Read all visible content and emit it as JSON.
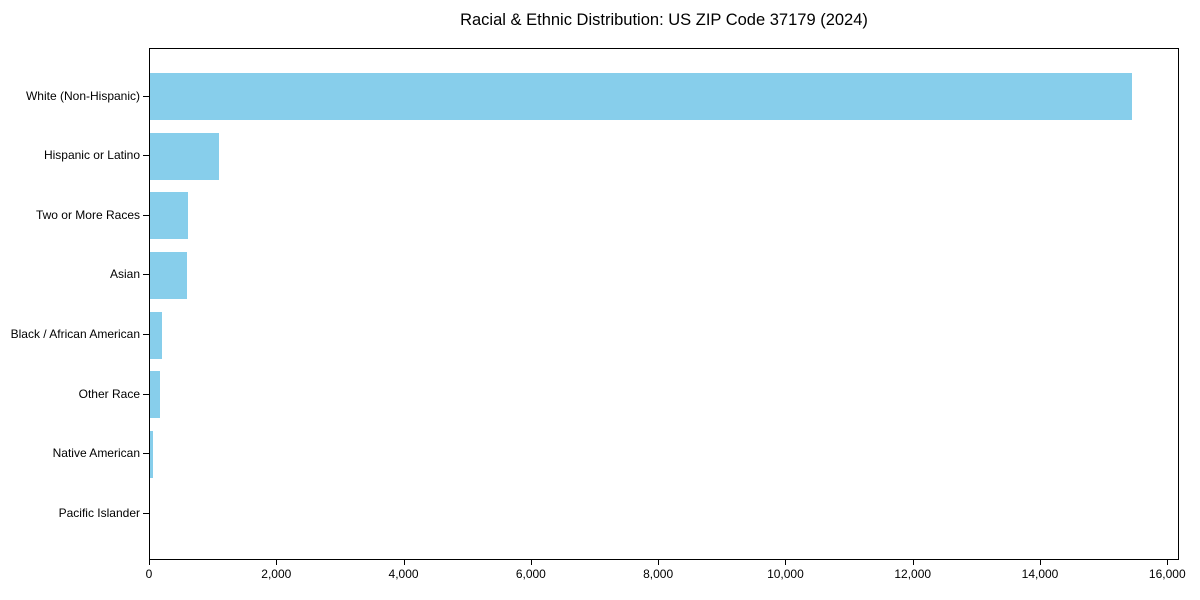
{
  "colors": {
    "background": "#FFFFFF",
    "bar": "#87CEEB",
    "axis": "#000000",
    "text": "#000000"
  },
  "chart_data": {
    "type": "bar",
    "orientation": "horizontal",
    "title": "Racial & Ethnic Distribution: US ZIP Code 37179 (2024)",
    "xlabel": "",
    "ylabel": "",
    "categories": [
      "White (Non-Hispanic)",
      "Hispanic or Latino",
      "Two or More Races",
      "Asian",
      "Black / African American",
      "Other Race",
      "Native American",
      "Pacific Islander"
    ],
    "values": [
      15430,
      1090,
      600,
      580,
      185,
      160,
      45,
      0
    ],
    "xlim": [
      0,
      16184
    ],
    "x_ticks": [
      0,
      2000,
      4000,
      6000,
      8000,
      10000,
      12000,
      14000,
      16000
    ],
    "x_tick_labels": [
      "0",
      "2,000",
      "4,000",
      "6,000",
      "8,000",
      "10,000",
      "12,000",
      "14,000",
      "16,000"
    ],
    "grid": false,
    "legend": "none",
    "value_labels": "none",
    "bar_color": "#87CEEB"
  }
}
